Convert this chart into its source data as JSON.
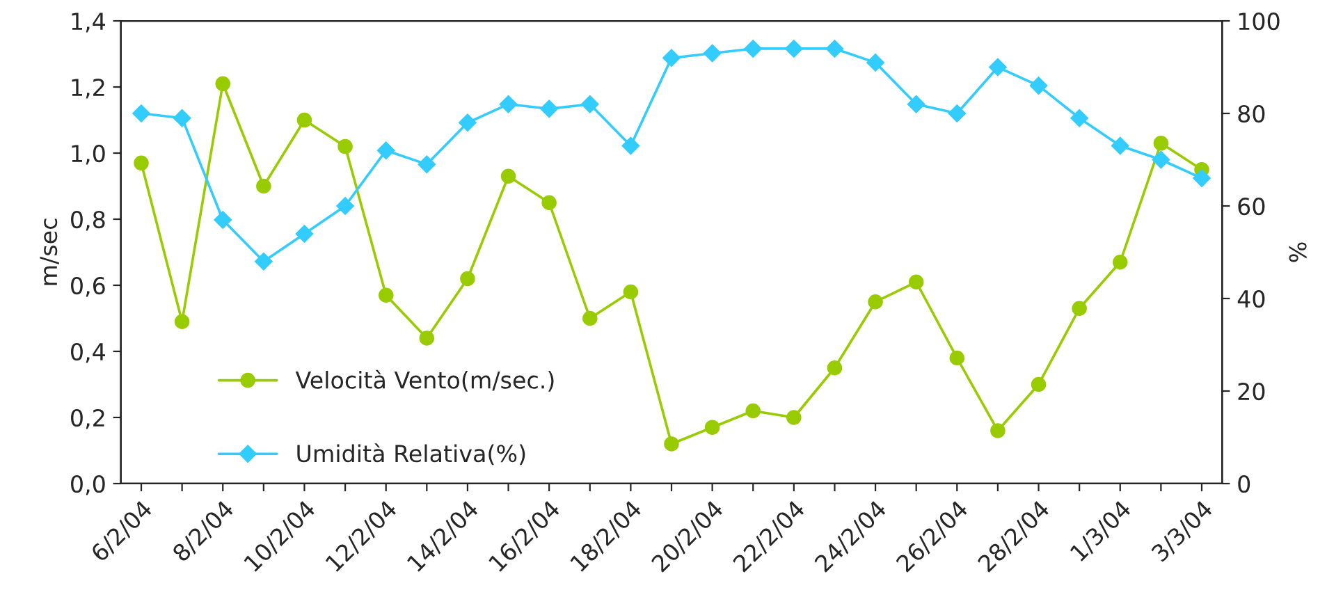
{
  "chart_data": {
    "type": "line",
    "categories": [
      "6/2/04",
      null,
      "8/2/04",
      null,
      "10/2/04",
      null,
      "12/2/04",
      null,
      "14/2/04",
      null,
      "16/2/04",
      null,
      "18/2/04",
      null,
      "20/2/04",
      null,
      "22/2/04",
      null,
      "24/2/04",
      null,
      "26/2/04",
      null,
      "28/2/04",
      null,
      "1/3/04",
      null,
      "3/3/04"
    ],
    "series": [
      {
        "name": "Velocità Vento(m/sec.)",
        "color": "#99cc00",
        "marker": "circle",
        "values": [
          0.97,
          0.49,
          1.21,
          0.9,
          1.1,
          1.02,
          0.57,
          0.44,
          0.62,
          0.93,
          0.85,
          0.5,
          0.58,
          0.12,
          0.17,
          0.22,
          0.2,
          0.35,
          0.55,
          0.61,
          0.38,
          0.16,
          0.3,
          0.53,
          0.67,
          1.03,
          0.95
        ]
      },
      {
        "name": "Umidità Relativa(%)",
        "color": "#33ccff",
        "marker": "diamond",
        "axis": "y2",
        "values": [
          80,
          79,
          57,
          48,
          54,
          60,
          72,
          69,
          78,
          82,
          81,
          82,
          73,
          92,
          93,
          94,
          94,
          94,
          91,
          82,
          80,
          90,
          86,
          79,
          73,
          70,
          66
        ]
      }
    ],
    "ylabel": "m/sec",
    "y2label": "%",
    "ylim": [
      0,
      1.4
    ],
    "yticks": [
      {
        "value": 0,
        "label": "0,0"
      },
      {
        "value": 0.2,
        "label": "0,2"
      },
      {
        "value": 0.4,
        "label": "0,4"
      },
      {
        "value": 0.6,
        "label": "0,6"
      },
      {
        "value": 0.8,
        "label": "0,8"
      },
      {
        "value": 1.0,
        "label": "1,0"
      },
      {
        "value": 1.2,
        "label": "1,2"
      },
      {
        "value": 1.4,
        "label": "1,4"
      }
    ],
    "y2lim": [
      0,
      100
    ],
    "y2ticks": [
      0,
      20,
      40,
      60,
      80,
      100
    ],
    "grid": false,
    "legend": "left",
    "line_style": "solid"
  }
}
